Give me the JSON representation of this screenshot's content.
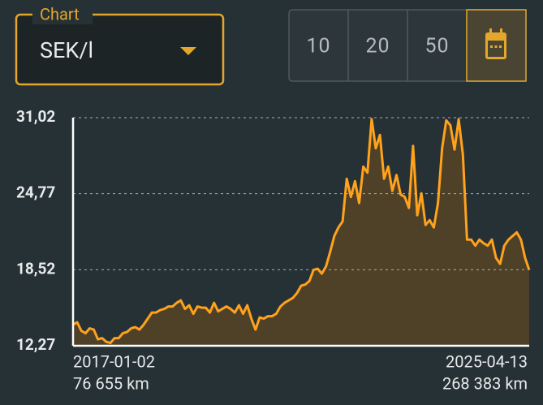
{
  "selector": {
    "label": "Chart",
    "value": "SEK/l"
  },
  "range_buttons": [
    "10",
    "20",
    "50"
  ],
  "chart_data": {
    "type": "area",
    "color": "#ffa21c",
    "fill": "#4f4128",
    "values": [
      14.0,
      14.2,
      13.5,
      13.3,
      13.7,
      13.6,
      12.8,
      12.9,
      12.6,
      12.5,
      12.9,
      12.9,
      13.3,
      13.4,
      13.7,
      13.8,
      13.6,
      14.0,
      14.5,
      15.0,
      15.0,
      15.2,
      15.3,
      15.5,
      15.5,
      15.8,
      16.0,
      15.3,
      15.6,
      14.9,
      15.5,
      15.4,
      15.4,
      15.0,
      15.8,
      15.1,
      15.3,
      15.5,
      15.3,
      15.0,
      15.6,
      14.9,
      15.6,
      14.5,
      13.6,
      14.6,
      14.5,
      14.7,
      14.7,
      14.9,
      15.5,
      15.8,
      16.0,
      16.2,
      16.6,
      17.2,
      17.3,
      17.6,
      18.5,
      18.6,
      18.2,
      18.8,
      20.0,
      21.3,
      22.0,
      22.5,
      26.0,
      24.5,
      25.8,
      24.0,
      27.0,
      26.5,
      30.9,
      28.5,
      29.6,
      26.0,
      27.0,
      25.0,
      26.3,
      24.7,
      24.5,
      23.6,
      28.7,
      23.0,
      24.8,
      22.2,
      22.6,
      22.0,
      24.0,
      28.5,
      30.8,
      30.4,
      28.4,
      30.9,
      28.0,
      21.0,
      21.0,
      20.5,
      21.0,
      20.7,
      20.5,
      21.0,
      19.5,
      19.0,
      20.5,
      21.0,
      21.3,
      21.6,
      21.0,
      19.5,
      18.5
    ],
    "ylim": [
      12.27,
      31.02
    ],
    "yticks": [
      {
        "value": 12.27,
        "label": "12,27"
      },
      {
        "value": 18.52,
        "label": "18,52"
      },
      {
        "value": 24.77,
        "label": "24,77"
      },
      {
        "value": 31.02,
        "label": "31,02"
      }
    ],
    "grid": true,
    "x_start": {
      "date": "2017-01-02",
      "odometer": "76 655 km"
    },
    "x_end": {
      "date": "2025-04-13",
      "odometer": "268 383 km"
    }
  }
}
